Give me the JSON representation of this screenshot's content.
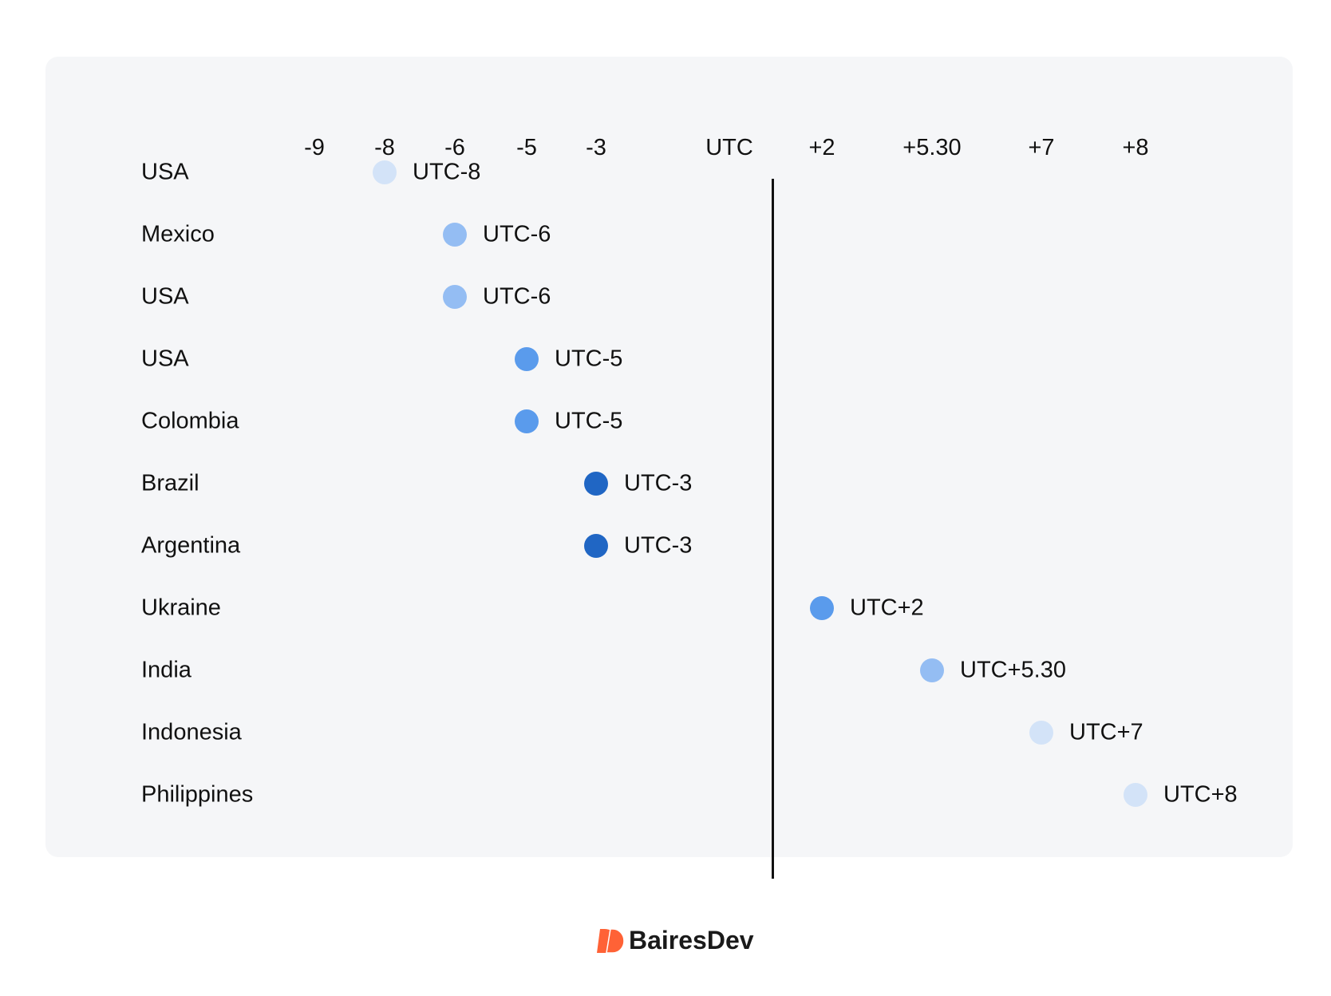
{
  "chart_data": {
    "type": "scatter",
    "title": "",
    "x_ticks": [
      "-9",
      "-8",
      "-6",
      "-5",
      "-3",
      "UTC",
      "+2",
      "+5.30",
      "+7",
      "+8"
    ],
    "x_values": [
      -9,
      -8,
      -6,
      -5,
      -3,
      0,
      2,
      5.5,
      7,
      8
    ],
    "rows": [
      {
        "country": "USA",
        "offset": -8,
        "label": "UTC-8",
        "color": "#d3e3f8"
      },
      {
        "country": "Mexico",
        "offset": -6,
        "label": "UTC-6",
        "color": "#94bdf3"
      },
      {
        "country": "USA",
        "offset": -6,
        "label": "UTC-6",
        "color": "#94bdf3"
      },
      {
        "country": "USA",
        "offset": -5,
        "label": "UTC-5",
        "color": "#5a9bec"
      },
      {
        "country": "Colombia",
        "offset": -5,
        "label": "UTC-5",
        "color": "#5a9bec"
      },
      {
        "country": "Brazil",
        "offset": -3,
        "label": "UTC-3",
        "color": "#2066c4"
      },
      {
        "country": "Argentina",
        "offset": -3,
        "label": "UTC-3",
        "color": "#2066c4"
      },
      {
        "country": "Ukraine",
        "offset": 2,
        "label": "UTC+2",
        "color": "#5a9bec"
      },
      {
        "country": "India",
        "offset": 5.5,
        "label": "UTC+5.30",
        "color": "#94bdf3"
      },
      {
        "country": "Indonesia",
        "offset": 7,
        "label": "UTC+7",
        "color": "#d3e3f8"
      },
      {
        "country": "Philippines",
        "offset": 8,
        "label": "UTC+8",
        "color": "#d3e3f8"
      }
    ],
    "reference_line": "UTC",
    "grid": false
  },
  "logo": {
    "text": "BairesDev",
    "color": "#ff6236"
  }
}
